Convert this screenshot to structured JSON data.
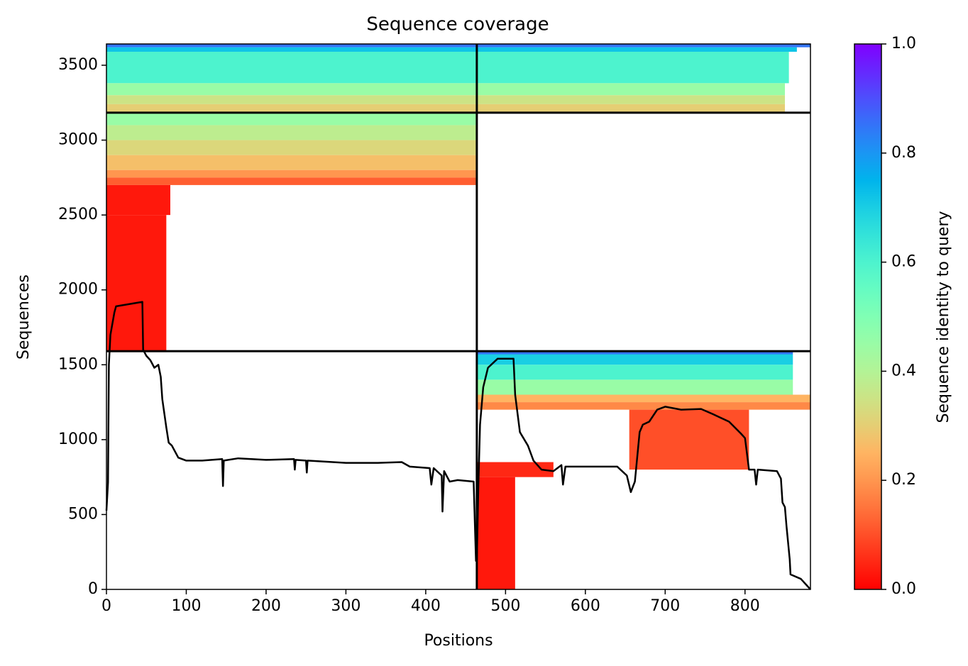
{
  "chart_data": {
    "type": "coverage",
    "title": "Sequence coverage",
    "xlabel": "Positions",
    "ylabel": "Sequences",
    "colorbar_label": "Sequence identity to query",
    "colormap": "rainbow_r",
    "xlim": [
      0,
      882
    ],
    "ylim": [
      0,
      3642
    ],
    "xticks": [
      0,
      100,
      200,
      300,
      400,
      500,
      600,
      700,
      800
    ],
    "yticks": [
      0,
      500,
      1000,
      1500,
      2000,
      2500,
      3000,
      3500
    ],
    "clim": [
      0,
      1
    ],
    "cticks": [
      {
        "value": 0,
        "label": "0.0"
      },
      {
        "value": 0.2,
        "label": "0.2"
      },
      {
        "value": 0.4,
        "label": "0.4"
      },
      {
        "value": 0.6,
        "label": "0.6"
      },
      {
        "value": 0.8,
        "label": "0.8"
      },
      {
        "value": 1,
        "label": "1.0"
      }
    ],
    "boundaries": {
      "x": [
        464
      ],
      "y": [
        1591,
        3183
      ]
    },
    "blocks": [
      {
        "x": [
          0,
          464
        ],
        "y": [
          3620,
          3642
        ],
        "identity": 0.85
      },
      {
        "x": [
          0,
          464
        ],
        "y": [
          3590,
          3620
        ],
        "identity": 0.72
      },
      {
        "x": [
          0,
          464
        ],
        "y": [
          3380,
          3590
        ],
        "identity": 0.6
      },
      {
        "x": [
          0,
          464
        ],
        "y": [
          3300,
          3380
        ],
        "identity": 0.45
      },
      {
        "x": [
          0,
          464
        ],
        "y": [
          3240,
          3300
        ],
        "identity": 0.35
      },
      {
        "x": [
          0,
          464
        ],
        "y": [
          3183,
          3240
        ],
        "identity": 0.3
      },
      {
        "x": [
          464,
          882
        ],
        "y": [
          3620,
          3642
        ],
        "identity": 0.85
      },
      {
        "x": [
          464,
          865
        ],
        "y": [
          3590,
          3620
        ],
        "identity": 0.72
      },
      {
        "x": [
          464,
          855
        ],
        "y": [
          3380,
          3590
        ],
        "identity": 0.6
      },
      {
        "x": [
          464,
          850
        ],
        "y": [
          3300,
          3380
        ],
        "identity": 0.45
      },
      {
        "x": [
          464,
          850
        ],
        "y": [
          3240,
          3300
        ],
        "identity": 0.35
      },
      {
        "x": [
          464,
          850
        ],
        "y": [
          3183,
          3240
        ],
        "identity": 0.3
      },
      {
        "x": [
          0,
          464
        ],
        "y": [
          3100,
          3183
        ],
        "identity": 0.45
      },
      {
        "x": [
          0,
          464
        ],
        "y": [
          3000,
          3100
        ],
        "identity": 0.38
      },
      {
        "x": [
          0,
          464
        ],
        "y": [
          2900,
          3000
        ],
        "identity": 0.32
      },
      {
        "x": [
          0,
          464
        ],
        "y": [
          2800,
          2900
        ],
        "identity": 0.27
      },
      {
        "x": [
          0,
          464
        ],
        "y": [
          2750,
          2800
        ],
        "identity": 0.2
      },
      {
        "x": [
          0,
          464
        ],
        "y": [
          2700,
          2750
        ],
        "identity": 0.12
      },
      {
        "x": [
          0,
          80
        ],
        "y": [
          2500,
          2700
        ],
        "identity": 0.03
      },
      {
        "x": [
          0,
          75
        ],
        "y": [
          1591,
          2500
        ],
        "identity": 0.03
      },
      {
        "x": [
          464,
          860
        ],
        "y": [
          1570,
          1591
        ],
        "identity": 0.85
      },
      {
        "x": [
          464,
          860
        ],
        "y": [
          1500,
          1570
        ],
        "identity": 0.7
      },
      {
        "x": [
          464,
          860
        ],
        "y": [
          1400,
          1500
        ],
        "identity": 0.6
      },
      {
        "x": [
          464,
          860
        ],
        "y": [
          1300,
          1400
        ],
        "identity": 0.45
      },
      {
        "x": [
          464,
          882
        ],
        "y": [
          1250,
          1300
        ],
        "identity": 0.25
      },
      {
        "x": [
          464,
          882
        ],
        "y": [
          1200,
          1250
        ],
        "identity": 0.18
      },
      {
        "x": [
          655,
          805
        ],
        "y": [
          800,
          1200
        ],
        "identity": 0.1
      },
      {
        "x": [
          464,
          560
        ],
        "y": [
          750,
          850
        ],
        "identity": 0.05
      },
      {
        "x": [
          464,
          512
        ],
        "y": [
          0,
          750
        ],
        "identity": 0.03
      }
    ],
    "line": {
      "color": "#000000",
      "x": [
        0,
        2,
        3,
        5,
        10,
        12,
        45,
        46,
        50,
        55,
        60,
        65,
        68,
        70,
        75,
        78,
        82,
        90,
        100,
        120,
        145,
        146,
        147,
        165,
        200,
        235,
        236,
        237,
        250,
        251,
        252,
        300,
        340,
        370,
        380,
        405,
        407,
        410,
        420,
        421,
        423,
        430,
        440,
        460,
        463,
        464,
        466,
        468,
        472,
        478,
        490,
        510,
        512,
        518,
        528,
        535,
        545,
        560,
        570,
        572,
        575,
        600,
        640,
        652,
        657,
        662,
        668,
        672,
        680,
        690,
        700,
        720,
        745,
        760,
        780,
        795,
        800,
        805,
        812,
        814,
        816,
        840,
        845,
        847,
        850,
        852,
        856,
        857,
        870,
        882
      ],
      "values": [
        526,
        715,
        1500,
        1700,
        1850,
        1890,
        1920,
        1600,
        1560,
        1530,
        1480,
        1500,
        1420,
        1270,
        1080,
        980,
        960,
        880,
        860,
        860,
        870,
        690,
        860,
        875,
        865,
        870,
        800,
        865,
        860,
        780,
        860,
        845,
        845,
        850,
        820,
        810,
        700,
        810,
        760,
        520,
        790,
        720,
        730,
        720,
        190,
        200,
        700,
        1100,
        1350,
        1480,
        1540,
        1540,
        1300,
        1050,
        960,
        860,
        800,
        790,
        830,
        700,
        820,
        820,
        820,
        760,
        650,
        720,
        1050,
        1100,
        1120,
        1200,
        1220,
        1200,
        1205,
        1170,
        1120,
        1040,
        1010,
        800,
        800,
        700,
        800,
        790,
        740,
        580,
        550,
        420,
        200,
        100,
        70,
        0
      ]
    }
  }
}
